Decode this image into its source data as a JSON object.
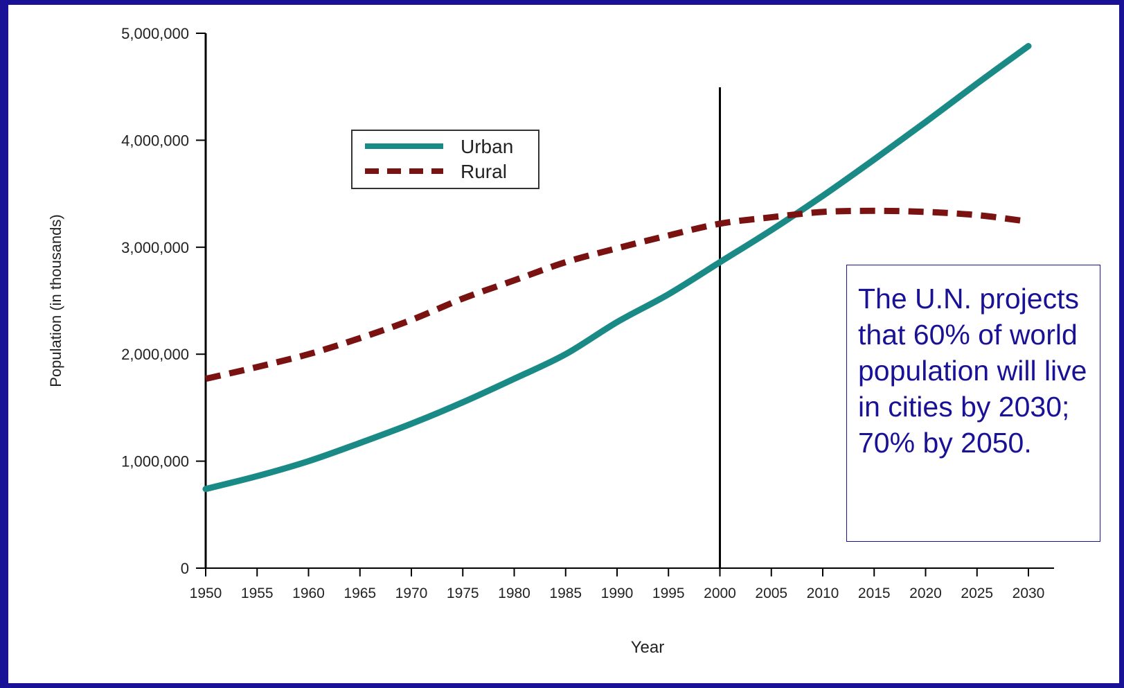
{
  "chart_data": {
    "type": "line",
    "xlabel": "Year",
    "ylabel": "Population (in thousands)",
    "ylim": [
      0,
      5000000
    ],
    "yticks": [
      0,
      1000000,
      2000000,
      3000000,
      4000000,
      5000000
    ],
    "ytick_labels": [
      "0",
      "1,000,000",
      "2,000,000",
      "3,000,000",
      "4,000,000",
      "5,000,000"
    ],
    "categories": [
      "1950",
      "1955",
      "1960",
      "1965",
      "1970",
      "1975",
      "1980",
      "1985",
      "1990",
      "1995",
      "2000",
      "2005",
      "2010",
      "2015",
      "2020",
      "2025",
      "2030"
    ],
    "grid": false,
    "legend": "upper-left",
    "reference_line_x": "2000",
    "series": [
      {
        "name": "Urban",
        "color": "#1a8a87",
        "style": "solid",
        "values": [
          740000,
          860000,
          1000000,
          1170000,
          1350000,
          1550000,
          1770000,
          2000000,
          2300000,
          2560000,
          2860000,
          3160000,
          3480000,
          3820000,
          4170000,
          4530000,
          4880000
        ]
      },
      {
        "name": "Rural",
        "color": "#7a1212",
        "style": "dashed",
        "values": [
          1770000,
          1880000,
          2000000,
          2150000,
          2320000,
          2520000,
          2690000,
          2860000,
          2990000,
          3110000,
          3220000,
          3280000,
          3330000,
          3340000,
          3330000,
          3300000,
          3240000
        ]
      }
    ]
  },
  "annotation": {
    "text": "The U.N. projects that 60% of world population will live in cities by 2030; 70% by 2050."
  },
  "colors": {
    "border": "#1a1296",
    "annotation_text": "#1a1296"
  }
}
